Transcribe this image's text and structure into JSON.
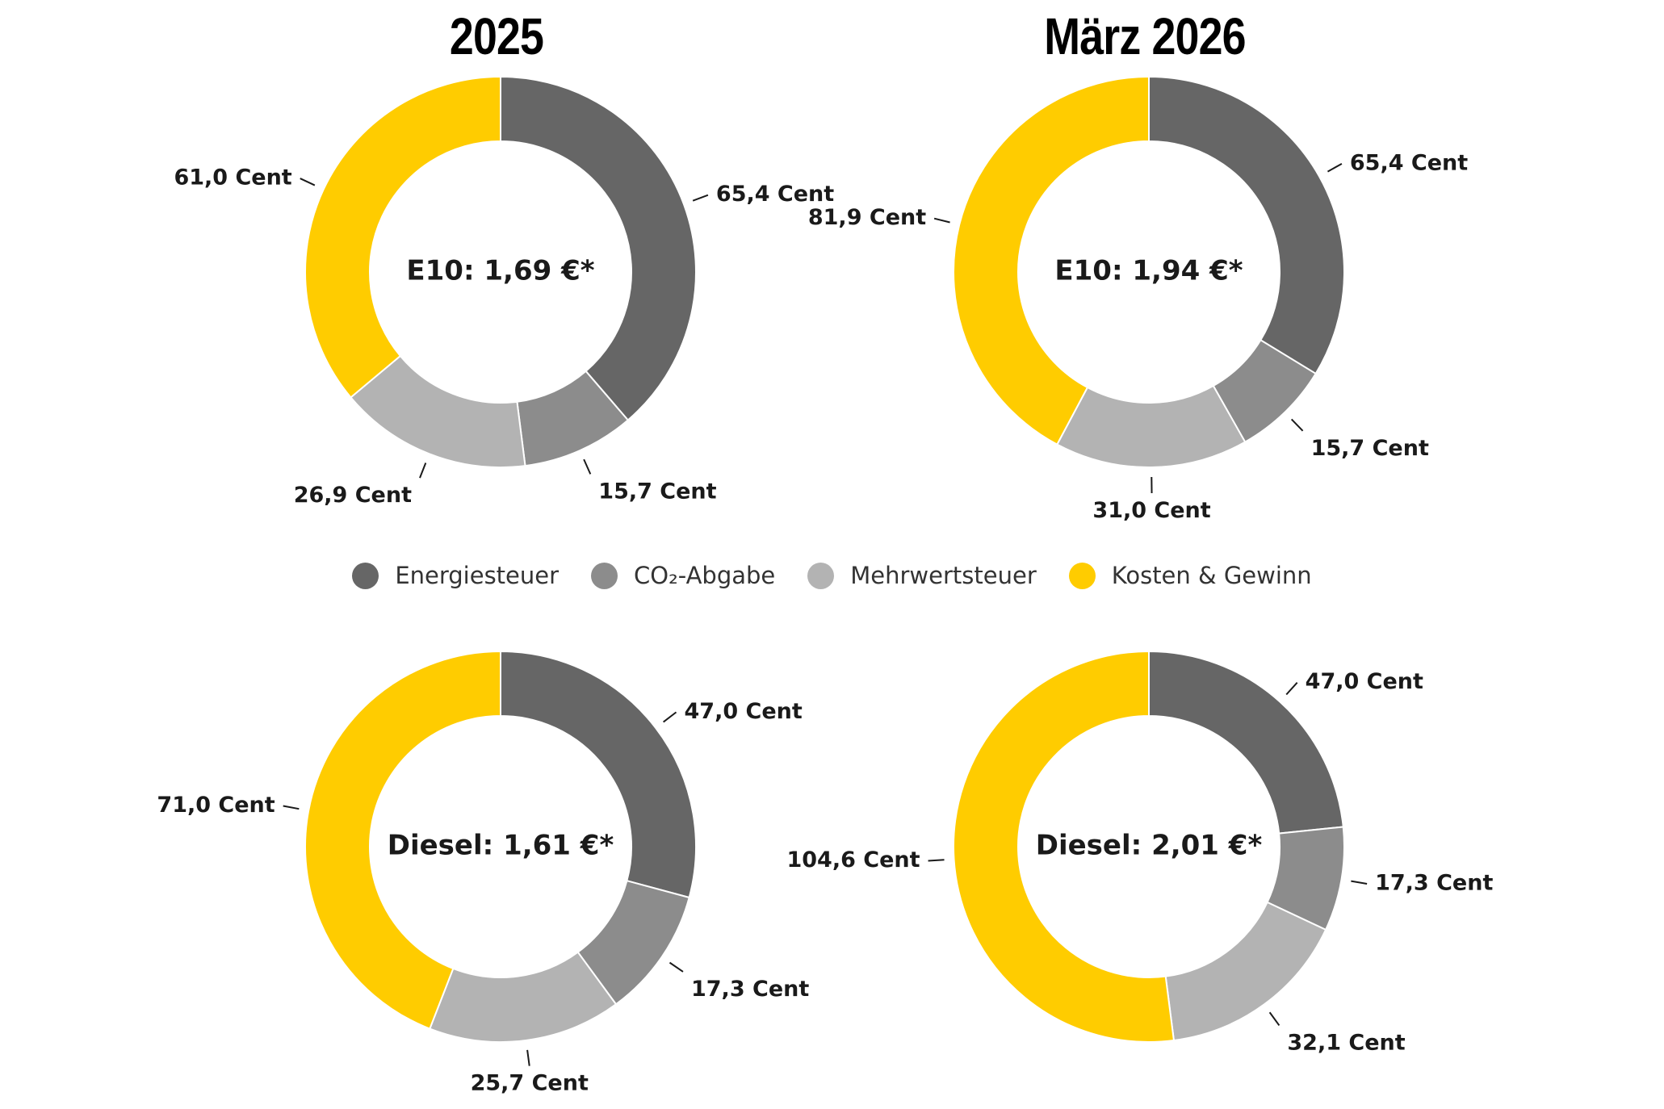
{
  "columns": [
    {
      "title": "2025"
    },
    {
      "title": "März 2026"
    }
  ],
  "legend": [
    {
      "label": "Energiesteuer",
      "color": "#666666"
    },
    {
      "label": "CO₂-Abgabe",
      "color": "#8c8c8c"
    },
    {
      "label": "Mehrwertsteuer",
      "color": "#b3b3b3"
    },
    {
      "label": "Kosten & Gewinn",
      "color": "#ffcc00"
    }
  ],
  "chart_data": [
    {
      "type": "pie",
      "center_label": "E10: 1,69 €*",
      "categories": [
        "Energiesteuer",
        "CO₂-Abgabe",
        "Mehrwertsteuer",
        "Kosten & Gewinn"
      ],
      "values": [
        65.4,
        15.7,
        26.9,
        61.0
      ],
      "labels": [
        "65,4 Cent",
        "15,7 Cent",
        "26,9 Cent",
        "61,0 Cent"
      ]
    },
    {
      "type": "pie",
      "center_label": "E10: 1,94 €*",
      "categories": [
        "Energiesteuer",
        "CO₂-Abgabe",
        "Mehrwertsteuer",
        "Kosten & Gewinn"
      ],
      "values": [
        65.4,
        15.7,
        31.0,
        81.9
      ],
      "labels": [
        "65,4 Cent",
        "15,7 Cent",
        "31,0 Cent",
        "81,9 Cent"
      ]
    },
    {
      "type": "pie",
      "center_label": "Diesel: 1,61 €*",
      "categories": [
        "Energiesteuer",
        "CO₂-Abgabe",
        "Mehrwertsteuer",
        "Kosten & Gewinn"
      ],
      "values": [
        47.0,
        17.3,
        25.7,
        71.0
      ],
      "labels": [
        "47,0 Cent",
        "17,3 Cent",
        "25,7 Cent",
        "71,0 Cent"
      ]
    },
    {
      "type": "pie",
      "center_label": "Diesel: 2,01 €*",
      "categories": [
        "Energiesteuer",
        "CO₂-Abgabe",
        "Mehrwertsteuer",
        "Kosten & Gewinn"
      ],
      "values": [
        47.0,
        17.3,
        32.1,
        104.6
      ],
      "labels": [
        "47,0 Cent",
        "17,3 Cent",
        "32,1 Cent",
        "104,6 Cent"
      ]
    }
  ]
}
